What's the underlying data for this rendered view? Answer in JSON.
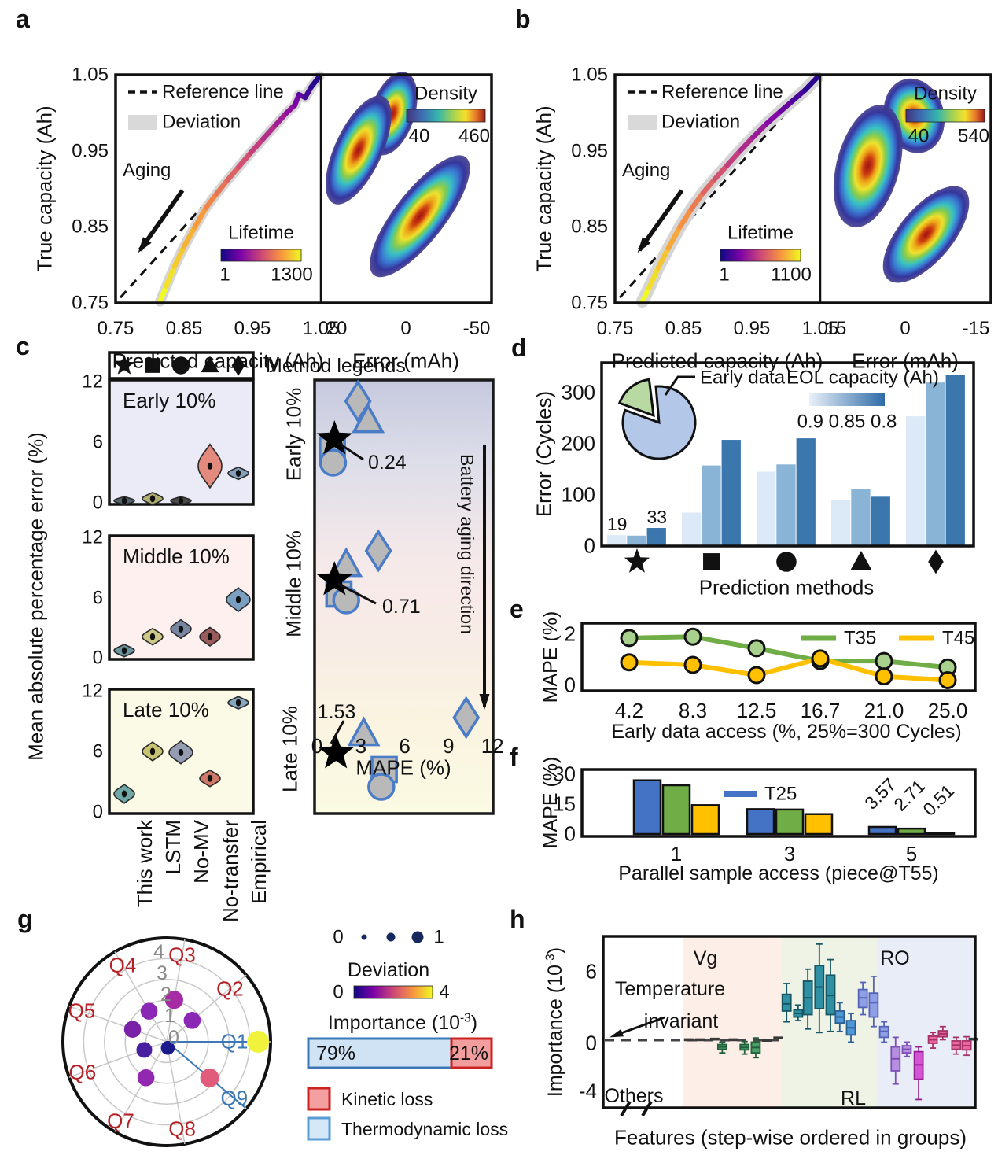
{
  "chart_data": [
    {
      "panel": "a",
      "type": "line+density",
      "letter": "a",
      "ylabel": "True capacity (Ah)",
      "yticks": [
        "1.05",
        "0.95",
        "0.85",
        "0.75"
      ],
      "left": {
        "xlabel": "Predicted capacity (Ah)",
        "xticks": [
          "0.75",
          "0.85",
          "0.95",
          "1.05"
        ],
        "legend": {
          "reference": "Reference line",
          "deviation": "Deviation"
        },
        "aging": "Aging",
        "lifetime": {
          "title": "Lifetime",
          "min": "1",
          "max": "1300"
        },
        "curve_pred_true": [
          [
            0.815,
            0.752
          ],
          [
            0.824,
            0.772
          ],
          [
            0.836,
            0.798
          ],
          [
            0.85,
            0.824
          ],
          [
            0.866,
            0.85
          ],
          [
            0.882,
            0.875
          ],
          [
            0.898,
            0.894
          ],
          [
            0.914,
            0.912
          ],
          [
            0.93,
            0.929
          ],
          [
            0.948,
            0.948
          ],
          [
            0.966,
            0.966
          ],
          [
            0.984,
            0.984
          ],
          [
            1.0,
            1.0
          ],
          [
            1.012,
            1.01
          ],
          [
            1.018,
            1.024
          ],
          [
            1.027,
            1.02
          ],
          [
            1.036,
            1.034
          ],
          [
            1.048,
            1.048
          ]
        ]
      },
      "right": {
        "xlabel": "Error (mAh)",
        "xticks": [
          "20",
          "0",
          "-50"
        ],
        "density": {
          "title": "Density",
          "min": "40",
          "max": "460"
        }
      }
    },
    {
      "panel": "b",
      "type": "line+density",
      "letter": "b",
      "ylabel": "True capacity (Ah)",
      "yticks": [
        "1.05",
        "0.95",
        "0.85",
        "0.75"
      ],
      "left": {
        "xlabel": "Predicted capacity (Ah)",
        "xticks": [
          "0.75",
          "0.85",
          "0.95",
          "1.05"
        ],
        "legend": {
          "reference": "Reference line",
          "deviation": "Deviation"
        },
        "aging": "Aging",
        "lifetime": {
          "title": "Lifetime",
          "min": "1",
          "max": "1100"
        },
        "curve_pred_true": [
          [
            0.79,
            0.752
          ],
          [
            0.8,
            0.77
          ],
          [
            0.813,
            0.796
          ],
          [
            0.828,
            0.822
          ],
          [
            0.845,
            0.85
          ],
          [
            0.862,
            0.874
          ],
          [
            0.879,
            0.895
          ],
          [
            0.896,
            0.913
          ],
          [
            0.914,
            0.931
          ],
          [
            0.933,
            0.95
          ],
          [
            0.952,
            0.968
          ],
          [
            0.972,
            0.986
          ],
          [
            0.992,
            1.002
          ],
          [
            1.01,
            1.016
          ],
          [
            1.028,
            1.03
          ],
          [
            1.045,
            1.046
          ]
        ]
      },
      "right": {
        "xlabel": "Error (mAh)",
        "xticks": [
          "15",
          "0",
          "-15"
        ],
        "density": {
          "title": "Density",
          "min": "40",
          "max": "540"
        }
      }
    },
    {
      "panel": "c",
      "type": "violin+scatter",
      "letter": "c",
      "ylabel": "Mean absolute percentage error (%)",
      "legend_title": "Method legends",
      "methods": [
        "This work",
        "LSTM",
        "No-MV",
        "No-transfer",
        "Empirical"
      ],
      "symbols": [
        "star",
        "square",
        "circle",
        "triangle",
        "diamond"
      ],
      "yticks": [
        "12",
        "6",
        "0"
      ],
      "sections": [
        {
          "title": "Early 10%",
          "values": [
            0.35,
            0.55,
            0.35,
            3.7,
            3.0
          ],
          "spreads": [
            0.4,
            0.6,
            0.4,
            2.1,
            0.6
          ],
          "colors": [
            "#44555e",
            "#a8a864",
            "#3a3a3a",
            "#e08070",
            "#7a98b5"
          ],
          "bg": "#eaebf6"
        },
        {
          "title": "Middle 10%",
          "values": [
            0.85,
            2.2,
            2.95,
            2.2,
            5.8
          ],
          "spreads": [
            0.6,
            0.8,
            0.9,
            0.9,
            1.15
          ],
          "colors": [
            "#5a8a96",
            "#c9c47a",
            "#6a7a99",
            "#8f4a4a",
            "#6d96bb"
          ],
          "bg": "#fdf0ee"
        },
        {
          "title": "Late 10%",
          "values": [
            1.9,
            6.0,
            5.9,
            3.4,
            10.7
          ],
          "spreads": [
            0.9,
            0.9,
            1.1,
            0.8,
            0.6
          ],
          "colors": [
            "#5f9e9e",
            "#c2bb66",
            "#8a92ad",
            "#cc6a5a",
            "#7a9cba"
          ],
          "bg": "#fbfae6"
        }
      ],
      "scatter": {
        "xlabel": "MAPE (%)",
        "xticks": [
          "0",
          "3",
          "6",
          "9",
          "12"
        ],
        "aging_text": "Battery aging direction",
        "rows": [
          {
            "label": "Early 10%",
            "annotation": "0.24",
            "mape": {
              "star": 1.2,
              "square": 1.05,
              "circle": 1.1,
              "triangle": 3.5,
              "diamond": 2.8
            }
          },
          {
            "label": "Middle 10%",
            "annotation": "0.71",
            "mape": {
              "star": 1.2,
              "square": 1.5,
              "circle": 2.0,
              "triangle": 2.0,
              "diamond": 4.2
            }
          },
          {
            "label": "Late 10%",
            "annotation": "1.53",
            "mape": {
              "star": 1.3,
              "square": 4.6,
              "circle": 4.4,
              "triangle": 3.2,
              "diamond": 10.2
            }
          }
        ]
      }
    },
    {
      "panel": "d",
      "type": "bar",
      "letter": "d",
      "ylabel": "Error (Cycles)",
      "xlabel": "Prediction methods",
      "yticks": [
        "300",
        "200",
        "100",
        "0"
      ],
      "pie_label": "Early data",
      "eol_title": "EOL capacity (Ah)",
      "eol_ticks": "0.9 0.85 0.8",
      "eol_values": [
        "0.9",
        "0.85",
        "0.8"
      ],
      "bar_colors": [
        "#dce9f6",
        "#8ab4d6",
        "#3b77ad"
      ],
      "groups": [
        {
          "symbol": "star",
          "values": [
            19,
            18,
            33
          ],
          "labels": [
            "19",
            "",
            "33"
          ]
        },
        {
          "symbol": "square",
          "values": [
            63,
            155,
            205
          ],
          "labels": [
            "",
            "",
            ""
          ]
        },
        {
          "symbol": "circle",
          "values": [
            143,
            157,
            208
          ],
          "labels": [
            "",
            "",
            ""
          ]
        },
        {
          "symbol": "triangle",
          "values": [
            87,
            109,
            94
          ],
          "labels": [
            "",
            "",
            ""
          ]
        },
        {
          "symbol": "diamond",
          "values": [
            251,
            317,
            332
          ],
          "labels": [
            "",
            "",
            ""
          ]
        }
      ]
    },
    {
      "panel": "e",
      "type": "line",
      "letter": "e",
      "ylabel": "MAPE (%)",
      "xlabel": "Early data access (%, 25%=300 Cycles)",
      "yticks": [
        "2",
        "0"
      ],
      "x": [
        "4.2",
        "8.3",
        "12.5",
        "16.7",
        "21.0",
        "25.0"
      ],
      "series": [
        {
          "name": "T35",
          "color": "#70ad47",
          "marker": "#a9d18e",
          "values": [
            1.85,
            1.9,
            1.45,
            0.95,
            0.95,
            0.7
          ]
        },
        {
          "name": "T45",
          "color": "#ffc000",
          "marker": "#ffc000",
          "values": [
            0.9,
            0.8,
            0.4,
            1.05,
            0.35,
            0.2
          ]
        }
      ]
    },
    {
      "panel": "f",
      "type": "bar",
      "letter": "f",
      "ylabel": "MAPE (%)",
      "xlabel": "Parallel sample access (piece@T55)",
      "yticks": [
        "30",
        "15",
        "0"
      ],
      "legend": "T25",
      "groups": [
        "1",
        "3",
        "5"
      ],
      "group_colors": [
        [
          "#4472c4",
          "#70ad47",
          "#ffc000"
        ],
        [
          "#4472c4",
          "#70ad47",
          "#ffc000"
        ],
        [
          "#4472c4",
          "#70ad47",
          "#111111"
        ]
      ],
      "values": [
        [
          27,
          24.5,
          14.5
        ],
        [
          12.5,
          12.3,
          10
        ],
        [
          3.57,
          2.71,
          0.51
        ]
      ],
      "bar_labels": [
        "3.57",
        "2.71",
        "0.51"
      ]
    },
    {
      "panel": "g",
      "type": "polar-scatter",
      "letter": "g",
      "spokes": [
        "Q1",
        "Q2",
        "Q3",
        "Q4",
        "Q5",
        "Q6",
        "Q7",
        "Q8",
        "Q9"
      ],
      "spoke_label_colors": {
        "Q1": "#3b78b5",
        "Q9": "#3b78b5",
        "default": "#b52025"
      },
      "rings": [
        "0",
        "1",
        "2",
        "3",
        "4"
      ],
      "points": [
        {
          "q": "Q1",
          "importance": 4.4,
          "deviation": 1.0,
          "color": "#f0f23c"
        },
        {
          "q": "Q2",
          "importance": 1.6,
          "deviation": 0.6,
          "color": "#8a28b5"
        },
        {
          "q": "Q3",
          "importance": 2.05,
          "deviation": 0.7,
          "color": "#a62ca6"
        },
        {
          "q": "Q4",
          "importance": 1.7,
          "deviation": 0.6,
          "color": "#8a28b5"
        },
        {
          "q": "Q5",
          "importance": 1.75,
          "deviation": 0.6,
          "color": "#7a22a8"
        },
        {
          "q": "Q6",
          "importance": 1.15,
          "deviation": 0.5,
          "color": "#4a1ea0"
        },
        {
          "q": "Q7",
          "importance": 2.0,
          "deviation": 0.6,
          "color": "#9228b0"
        },
        {
          "q": "Q8",
          "importance": 0.3,
          "deviation": 0.35,
          "color": "#1a1a8c"
        },
        {
          "q": "Q9",
          "importance": 2.7,
          "deviation": 0.75,
          "color": "#e05c7a"
        }
      ],
      "deviation_legend": {
        "min": "0",
        "max": "1",
        "label": "Deviation"
      },
      "importance_legend": {
        "min": "0",
        "max": "4",
        "label_main": "Importance (10",
        "label_sup": "-3",
        "label_close": ")"
      },
      "split_bar": {
        "left": "79%",
        "right": "21%"
      },
      "losses": [
        {
          "label": "Kinetic loss",
          "fill": "#f4a0a0",
          "border": "#cc2222"
        },
        {
          "label": "Thermodynamic loss",
          "fill": "#d6e8f7",
          "border": "#5b9bd5"
        }
      ]
    },
    {
      "panel": "h",
      "type": "box",
      "letter": "h",
      "ylabel_main": "Importance (10",
      "ylabel_sup": "-3",
      "ylabel_close": ")",
      "yticks": [
        "6",
        "0",
        "-4"
      ],
      "ytick_values": [
        6,
        0,
        -4
      ],
      "xlabel": "Features (step-wise ordered in groups)",
      "regions": [
        {
          "label": "Others",
          "color": "#ffffff",
          "span": [
            0,
            0.215
          ]
        },
        {
          "label": "Vg",
          "color": "#fdeee8",
          "span": [
            0.215,
            0.478
          ]
        },
        {
          "label": "RL",
          "color": "#eef3e6",
          "span": [
            0.478,
            0.736
          ]
        },
        {
          "label": "RO",
          "color": "#e8edf8",
          "span": [
            0.736,
            1
          ]
        }
      ],
      "annotation": [
        "Temperature",
        "invariant"
      ],
      "dashes": [
        {
          "x": 0.23,
          "v": 0.3
        },
        {
          "x": 0.26,
          "v": 0.3
        },
        {
          "x": 0.3,
          "v": 0.35
        },
        {
          "x": 0.35,
          "v": 0.3
        },
        {
          "x": 0.44,
          "v": 0.25
        },
        {
          "x": 0.47,
          "v": 0.45
        },
        {
          "x": 0.995,
          "v": 0.35
        }
      ],
      "boxes": [
        {
          "x": 0.32,
          "lo": -0.8,
          "q1": -0.5,
          "med": -0.3,
          "q3": -0.1,
          "hi": 0.1,
          "c": "green"
        },
        {
          "x": 0.38,
          "lo": -0.9,
          "q1": -0.55,
          "med": -0.35,
          "q3": -0.1,
          "hi": 0.15,
          "c": "green"
        },
        {
          "x": 0.41,
          "lo": -1.2,
          "q1": -0.8,
          "med": -0.35,
          "q3": 0.1,
          "hi": 0.45,
          "c": "green"
        },
        {
          "x": 0.493,
          "lo": 1.8,
          "q1": 2.7,
          "med": 3.3,
          "q3": 4.1,
          "hi": 5.0,
          "c": "teal"
        },
        {
          "x": 0.524,
          "lo": 1.9,
          "q1": 2.2,
          "med": 2.5,
          "q3": 2.8,
          "hi": 3.2,
          "c": "teal"
        },
        {
          "x": 0.55,
          "lo": 1.2,
          "q1": 2.4,
          "med": 3.8,
          "q3": 5.2,
          "hi": 6.2,
          "c": "teal"
        },
        {
          "x": 0.581,
          "lo": 0.9,
          "q1": 2.9,
          "med": 4.7,
          "q3": 6.5,
          "hi": 8.3,
          "c": "teal"
        },
        {
          "x": 0.611,
          "lo": 1.0,
          "q1": 2.4,
          "med": 4.0,
          "q3": 5.7,
          "hi": 7.0,
          "c": "teal"
        },
        {
          "x": 0.636,
          "lo": 1.0,
          "q1": 1.7,
          "med": 2.2,
          "q3": 2.7,
          "hi": 3.4,
          "c": "blue"
        },
        {
          "x": 0.666,
          "lo": 0.1,
          "q1": 0.7,
          "med": 1.3,
          "q3": 1.9,
          "hi": 2.5,
          "c": "blue"
        },
        {
          "x": 0.698,
          "lo": 2.4,
          "q1": 3.0,
          "med": 3.8,
          "q3": 4.5,
          "hi": 5.1,
          "c": "peri"
        },
        {
          "x": 0.727,
          "lo": 1.4,
          "q1": 2.2,
          "med": 3.4,
          "q3": 4.2,
          "hi": 5.6,
          "c": "peri"
        },
        {
          "x": 0.755,
          "lo": 0.1,
          "q1": 0.5,
          "med": 1.0,
          "q3": 1.4,
          "hi": 1.8,
          "c": "peri"
        },
        {
          "x": 0.786,
          "lo": -3.4,
          "q1": -2.3,
          "med": -1.3,
          "q3": -0.3,
          "hi": 0.5,
          "c": "lav"
        },
        {
          "x": 0.816,
          "lo": -1.1,
          "q1": -0.8,
          "med": -0.5,
          "q3": -0.2,
          "hi": 0.1,
          "c": "lav"
        },
        {
          "x": 0.848,
          "lo": -4.7,
          "q1": -3.0,
          "med": -1.8,
          "q3": -0.7,
          "hi": -0.3,
          "c": "mag"
        },
        {
          "x": 0.886,
          "lo": -0.4,
          "q1": 0.0,
          "med": 0.3,
          "q3": 0.6,
          "hi": 0.9,
          "c": "pink"
        },
        {
          "x": 0.913,
          "lo": 0.3,
          "q1": 0.55,
          "med": 0.8,
          "q3": 1.05,
          "hi": 1.4,
          "c": "pink"
        },
        {
          "x": 0.949,
          "lo": -0.9,
          "q1": -0.5,
          "med": -0.15,
          "q3": 0.2,
          "hi": 0.5,
          "c": "pink"
        },
        {
          "x": 0.977,
          "lo": -1.0,
          "q1": -0.55,
          "med": -0.2,
          "q3": 0.2,
          "hi": 0.55,
          "c": "pink"
        }
      ]
    }
  ]
}
